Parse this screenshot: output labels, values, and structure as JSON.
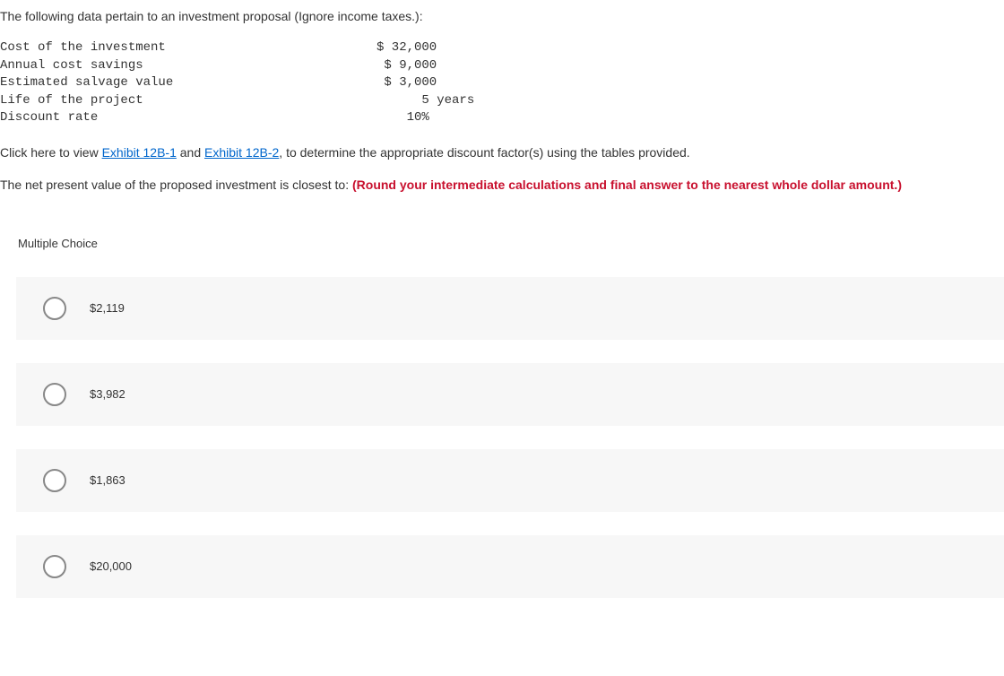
{
  "intro": "The following data pertain to an investment proposal (Ignore income taxes.):",
  "table": {
    "rows": [
      {
        "label": "Cost of the investment",
        "value": "$ 32,000"
      },
      {
        "label": "Annual cost savings",
        "value": " $ 9,000"
      },
      {
        "label": "Estimated salvage value",
        "value": " $ 3,000"
      },
      {
        "label": "Life of the project",
        "value": "      5 years"
      },
      {
        "label": "Discount rate",
        "value": "    10%"
      }
    ]
  },
  "exhibit": {
    "prefix": "Click here to view ",
    "link1": "Exhibit 12B-1",
    "mid": " and ",
    "link2": "Exhibit 12B-2",
    "suffix": ", to determine the appropriate discount factor(s) using the tables provided."
  },
  "question": {
    "stem": "The net present value of the proposed investment is closest to: ",
    "note": "(Round your intermediate calculations and final answer to the nearest whole dollar amount.)"
  },
  "mc_label": "Multiple Choice",
  "choices": [
    "$2,119",
    "$3,982",
    "$1,863",
    "$20,000"
  ]
}
